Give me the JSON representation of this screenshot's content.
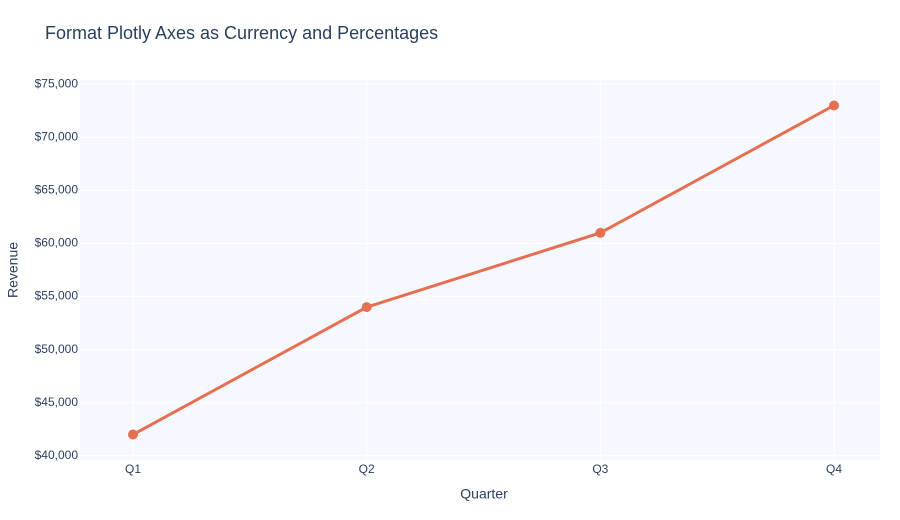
{
  "chart_data": {
    "type": "line",
    "title": "Format Plotly Axes as Currency and Percentages",
    "x_label": "Quarter",
    "y_label": "Revenue",
    "categories": [
      "Q1",
      "Q2",
      "Q3",
      "Q4"
    ],
    "series": [
      {
        "name": "Revenue",
        "color": "#e76f51",
        "values": [
          42000,
          54000,
          61000,
          73000
        ]
      }
    ],
    "ylim": [
      39600,
      75400
    ],
    "yticks": [
      {
        "value": 40000,
        "label": "$40,000"
      },
      {
        "value": 45000,
        "label": "$45,000"
      },
      {
        "value": 50000,
        "label": "$50,000"
      },
      {
        "value": 55000,
        "label": "$55,000"
      },
      {
        "value": 60000,
        "label": "$60,000"
      },
      {
        "value": 65000,
        "label": "$65,000"
      },
      {
        "value": 70000,
        "label": "$70,000"
      },
      {
        "value": 75000,
        "label": "$75,000"
      }
    ],
    "grid": true
  }
}
